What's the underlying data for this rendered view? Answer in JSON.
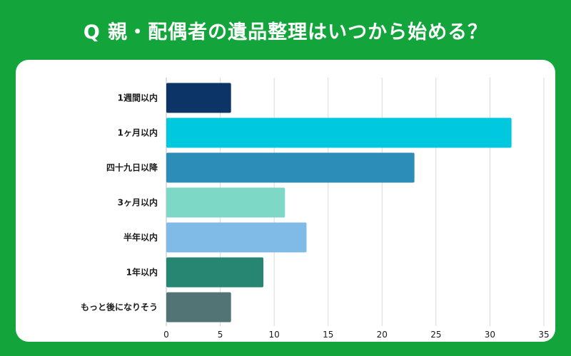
{
  "title": "Q 親・配偶者の遺品整理はいつから始める？",
  "colors": {
    "background": "#13a53c",
    "panel": "#ffffff",
    "grid": "#d9d9d9"
  },
  "chart_data": {
    "type": "bar",
    "orientation": "horizontal",
    "categories": [
      "1週間以内",
      "1ヶ月以内",
      "四十九日以降",
      "3ヶ月以内",
      "半年以内",
      "1年以内",
      "もっと後になりそう"
    ],
    "values": [
      6,
      32,
      23,
      11,
      13,
      9,
      6
    ],
    "bar_colors": [
      "#0d3466",
      "#00c8de",
      "#2b8db8",
      "#7dd8c6",
      "#80bbe8",
      "#268672",
      "#537475"
    ],
    "xlim": [
      0,
      35
    ],
    "xticks": [
      0,
      5,
      10,
      15,
      20,
      25,
      30,
      35
    ],
    "grid": true,
    "legend": "none"
  }
}
